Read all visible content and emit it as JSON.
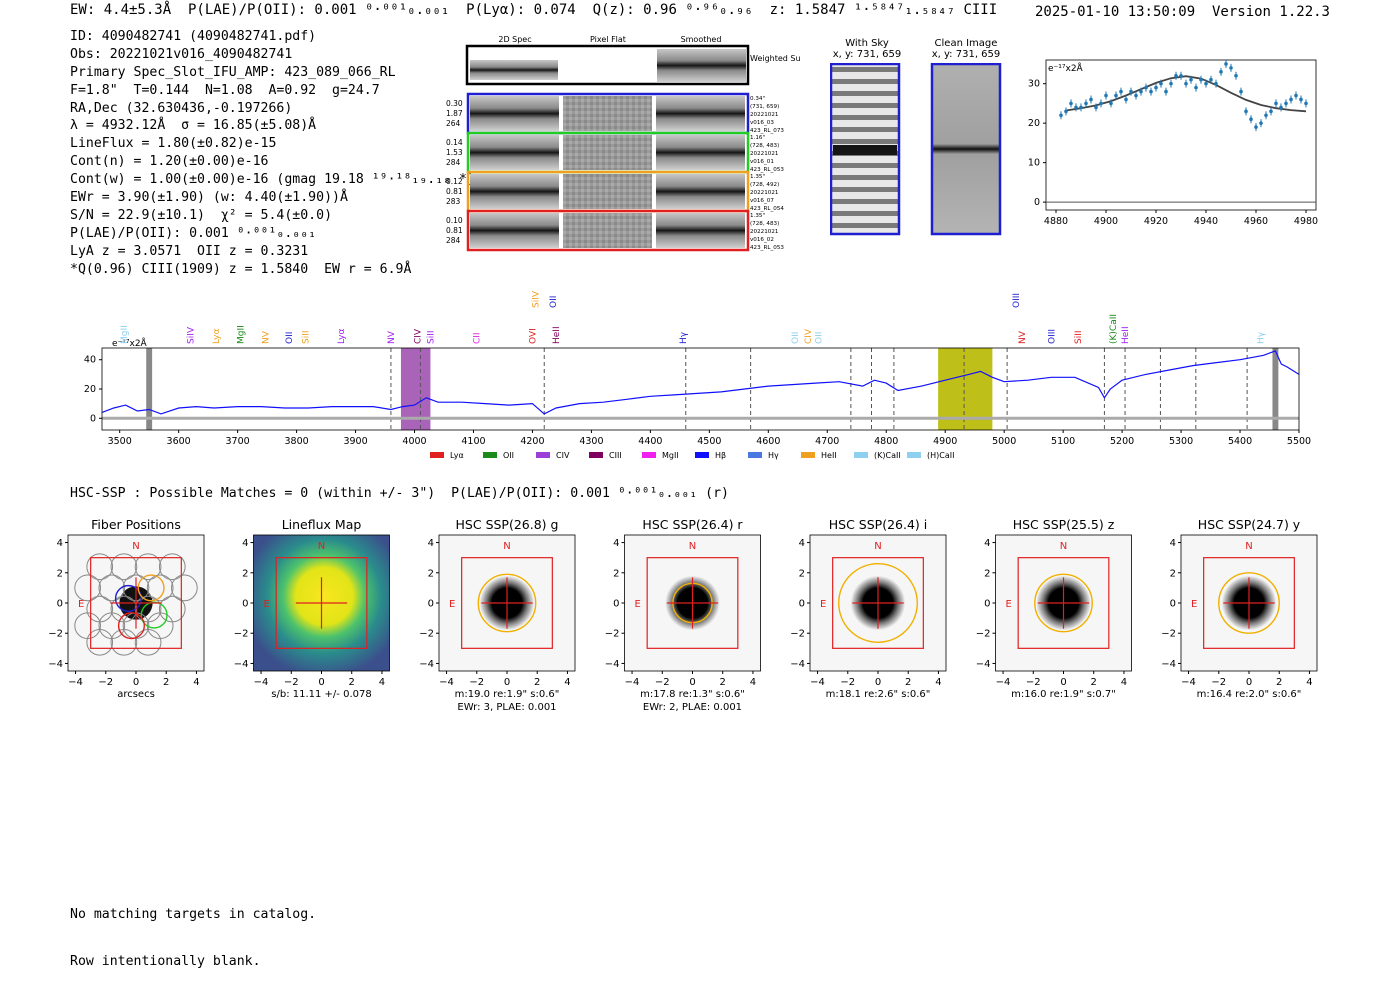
{
  "header": {
    "line": "EW: 4.4±5.3Å  P(LAE)/P(OII): 0.001 ⁰·⁰⁰¹₀.₀₀₁  P(Lyα): 0.074  Q(z): 0.96 ⁰·⁹⁶₀.₉₆  z: 1.5847 ¹·⁵⁸⁴⁷₁.₅₈₄₇ CIII",
    "datestamp": "2025-01-10 13:50:09  Version 1.22.3"
  },
  "info_lines": [
    "ID: 4090482741 (4090482741.pdf)",
    "Obs: 20221021v016_4090482741",
    "Primary Spec_Slot_IFU_AMP: 423_089_066_RL",
    "F=1.8\"  T=0.144  N=1.08  A=0.92  g=24.7",
    "RA,Dec (32.630436,-0.197266)",
    "λ = 4932.12Å  σ = 16.85(±5.08)Å",
    "LineFlux = 1.80(±0.82)e-15",
    "Cont(n) = 1.20(±0.00)e-16",
    "Cont(w) = 1.00(±0.00)e-16 (gmag 19.18 ¹⁹·¹⁸₁₉.₁₈ *)",
    "EWr = 3.90(±1.90) (w: 4.40(±1.90))Å",
    "S/N = 22.9(±10.1)  χ² = 5.4(±0.0)",
    "P(LAE)/P(OII): 0.001 ⁰·⁰⁰¹₀.₀₀₁",
    "LyA z = 3.0571  OII z = 0.3231",
    "*Q(0.96) CIII(1909) z = 1.5840  EW r = 6.9Å"
  ],
  "cutouts": {
    "col_labels": [
      "2D Spec",
      "Pixel Flat",
      "Smoothed"
    ],
    "weighted_label": "Weighted Sum",
    "rows": [
      {
        "left": [
          "0.30",
          "1.87",
          "264"
        ],
        "right": [
          "0.34\"",
          "(731, 659)",
          "20221021",
          "v016_03",
          "423_RL_073"
        ],
        "color": "#1f1fd0"
      },
      {
        "left": [
          "0.14",
          "1.53",
          "284"
        ],
        "right": [
          "1.16\"",
          "(728, 483)",
          "20221021",
          "v016_01",
          "423_RL_053"
        ],
        "color": "#22cc22"
      },
      {
        "left": [
          "0.12",
          "0.81",
          "283"
        ],
        "right": [
          "1.35\"",
          "(728, 492)",
          "20221021",
          "v016_07",
          "423_RL_054"
        ],
        "color": "#f0a020"
      },
      {
        "left": [
          "0.10",
          "0.81",
          "284"
        ],
        "right": [
          "1.35\"",
          "(728, 483)",
          "20221021",
          "v016_02",
          "423_RL_053"
        ],
        "color": "#e02020"
      }
    ]
  },
  "sky_panels": {
    "with_sky": {
      "title": "With Sky",
      "coords": "x, y: 731, 659"
    },
    "clean": {
      "title": "Clean Image",
      "coords": "x, y: 731, 659"
    }
  },
  "chart_data": [
    {
      "type": "scatter",
      "title": "",
      "ylabel_note": "e⁻¹⁷x2Å",
      "xlim": [
        4876,
        4984
      ],
      "ylim": [
        -2,
        36
      ],
      "xticks": [
        4880,
        4900,
        4920,
        4940,
        4960,
        4980
      ],
      "yticks": [
        0,
        10,
        20,
        30
      ],
      "points_x": [
        4882,
        4884,
        4886,
        4888,
        4890,
        4892,
        4894,
        4896,
        4898,
        4900,
        4902,
        4904,
        4906,
        4908,
        4910,
        4912,
        4914,
        4916,
        4918,
        4920,
        4922,
        4924,
        4926,
        4928,
        4930,
        4932,
        4934,
        4936,
        4938,
        4940,
        4942,
        4944,
        4946,
        4948,
        4950,
        4952,
        4954,
        4956,
        4958,
        4960,
        4962,
        4964,
        4966,
        4968,
        4970,
        4972,
        4974,
        4976,
        4978,
        4980
      ],
      "points_y": [
        22,
        23,
        25,
        24,
        24,
        25,
        26,
        24,
        25,
        27,
        25,
        27,
        28,
        26,
        28,
        27,
        28,
        29,
        28,
        29,
        30,
        28,
        30,
        32,
        32,
        30,
        31,
        29,
        31,
        30,
        31,
        30,
        33,
        35,
        34,
        32,
        28,
        23,
        21,
        19,
        20,
        22,
        23,
        25,
        24,
        25,
        26,
        27,
        26,
        25
      ],
      "fit_x": [
        4884,
        4890,
        4896,
        4902,
        4908,
        4914,
        4920,
        4926,
        4932,
        4938,
        4944,
        4950,
        4956,
        4962,
        4968,
        4974,
        4980
      ],
      "fit_y": [
        23.2,
        23.8,
        24.5,
        25.6,
        27.0,
        28.6,
        30.2,
        31.4,
        31.9,
        31.3,
        29.7,
        27.7,
        25.9,
        24.6,
        23.8,
        23.3,
        23.0
      ]
    },
    {
      "type": "line",
      "ylabel_note": "e⁻¹⁷x2Å",
      "xlim": [
        3470,
        5500
      ],
      "ylim": [
        -8,
        48
      ],
      "xticks": [
        3500,
        3600,
        3700,
        3800,
        3900,
        4000,
        4100,
        4200,
        4300,
        4400,
        4500,
        4600,
        4700,
        4800,
        4900,
        5000,
        5100,
        5200,
        5300,
        5400,
        5500
      ],
      "yticks": [
        0,
        20,
        40
      ],
      "spectrum_x": [
        3470,
        3490,
        3510,
        3530,
        3550,
        3570,
        3600,
        3630,
        3660,
        3700,
        3740,
        3780,
        3820,
        3860,
        3900,
        3930,
        3960,
        3980,
        4000,
        4020,
        4040,
        4080,
        4120,
        4160,
        4200,
        4220,
        4240,
        4280,
        4320,
        4360,
        4400,
        4440,
        4480,
        4520,
        4560,
        4600,
        4640,
        4680,
        4720,
        4760,
        4780,
        4800,
        4820,
        4860,
        4900,
        4920,
        4940,
        4960,
        4980,
        5000,
        5040,
        5080,
        5120,
        5160,
        5170,
        5180,
        5200,
        5240,
        5280,
        5320,
        5360,
        5400,
        5440,
        5460,
        5470,
        5480,
        5500
      ],
      "spectrum_y": [
        4,
        7,
        9,
        5,
        6,
        3,
        7,
        8,
        7,
        8,
        8,
        7,
        7,
        8,
        8,
        8,
        6,
        8,
        9,
        14,
        11,
        11,
        10,
        9,
        10,
        3,
        7,
        10,
        11,
        13,
        15,
        16,
        17,
        18,
        20,
        22,
        23,
        24,
        25,
        22,
        26,
        24,
        19,
        22,
        26,
        28,
        30,
        32,
        28,
        25,
        26,
        28,
        28,
        21,
        14,
        20,
        26,
        30,
        33,
        36,
        38,
        40,
        43,
        46,
        37,
        35,
        30
      ],
      "sky_bands": [
        [
          3545,
          3555
        ],
        [
          5455,
          5465
        ]
      ],
      "highlight_bands": [
        {
          "range": [
            3977,
            4027
          ],
          "color": "#a052b0"
        },
        {
          "range": [
            4888,
            4980
          ],
          "color": "#b8b800"
        }
      ],
      "line_markers": [
        {
          "x": 3512,
          "label": "MgII",
          "color": "#8fd0f0",
          "tier": 0
        },
        {
          "x": 3625,
          "label": "SiIV",
          "color": "#a020f0",
          "tier": 0
        },
        {
          "x": 3668,
          "label": "Lyα",
          "color": "#f0a020",
          "tier": 0
        },
        {
          "x": 3710,
          "label": "MgII",
          "color": "#1a8a1a",
          "tier": 0
        },
        {
          "x": 3752,
          "label": "NV",
          "color": "#f0a020",
          "tier": 0
        },
        {
          "x": 3792,
          "label": "OII",
          "color": "#1f1fd0",
          "tier": 0
        },
        {
          "x": 3820,
          "label": "SiII",
          "color": "#f0a020",
          "tier": 0
        },
        {
          "x": 3880,
          "label": "Lyα",
          "color": "#a020f0",
          "tier": 0
        },
        {
          "x": 3965,
          "label": "NV",
          "color": "#a020f0",
          "tier": 0
        },
        {
          "x": 4010,
          "label": "CIV",
          "color": "#800060",
          "tier": 0
        },
        {
          "x": 4032,
          "label": "SiII",
          "color": "#a020f0",
          "tier": 0
        },
        {
          "x": 4110,
          "label": "CII",
          "color": "#e020e0",
          "tier": 0
        },
        {
          "x": 4205,
          "label": "OVI",
          "color": "#e02020",
          "tier": 0
        },
        {
          "x": 4245,
          "label": "HeII",
          "color": "#800060",
          "tier": 0
        },
        {
          "x": 4210,
          "label": "SiIV",
          "color": "#f0a020",
          "tier": 1
        },
        {
          "x": 4240,
          "label": "OII",
          "color": "#1f1fd0",
          "tier": 1
        },
        {
          "x": 4460,
          "label": "Hγ",
          "color": "#1f1fd0",
          "tier": 0
        },
        {
          "x": 4650,
          "label": "OII",
          "color": "#8fd0f0",
          "tier": 0
        },
        {
          "x": 4672,
          "label": "CIV",
          "color": "#f0a020",
          "tier": 0
        },
        {
          "x": 4690,
          "label": "OII",
          "color": "#8fd0f0",
          "tier": 0
        },
        {
          "x": 5025,
          "label": "OIII",
          "color": "#1f1fd0",
          "tier": 1
        },
        {
          "x": 5035,
          "label": "NV",
          "color": "#e02020",
          "tier": 0
        },
        {
          "x": 5085,
          "label": "OIII",
          "color": "#1f1fd0",
          "tier": 0
        },
        {
          "x": 5130,
          "label": "SiII",
          "color": "#e02020",
          "tier": 0
        },
        {
          "x": 5190,
          "label": "(K)CaII",
          "color": "#1a8a1a",
          "tier": 0
        },
        {
          "x": 5210,
          "label": "HeII",
          "color": "#a020f0",
          "tier": 0
        },
        {
          "x": 5440,
          "label": "Hγ",
          "color": "#8fd0f0",
          "tier": 0
        }
      ],
      "dashed_lines": [
        3960,
        4010,
        4220,
        4460,
        4570,
        4740,
        4775,
        4813,
        4932,
        5005,
        5170,
        5205,
        5265,
        5325,
        5412
      ],
      "legend": [
        {
          "label": "Lyα",
          "color": "#e02020"
        },
        {
          "label": "OII",
          "color": "#1a8a1a"
        },
        {
          "label": "CIV",
          "color": "#9a40d8"
        },
        {
          "label": "CIII",
          "color": "#800060"
        },
        {
          "label": "MgII",
          "color": "#f020f0"
        },
        {
          "label": "Hβ",
          "color": "#1010ff"
        },
        {
          "label": "Hγ",
          "color": "#4a78e0"
        },
        {
          "label": "HeII",
          "color": "#f0a020"
        },
        {
          "label": "(K)CaII",
          "color": "#8fd0f0"
        },
        {
          "label": "(H)CaII",
          "color": "#8fd0f0"
        }
      ]
    }
  ],
  "hsc": {
    "title": "HSC-SSP : Possible Matches = 0 (within +/- 3\")  P(LAE)/P(OII): 0.001 ⁰·⁰⁰¹₀.₀₀₁ (r)",
    "axis_ticks": [
      "4",
      "2",
      "0",
      "−2",
      "−4"
    ],
    "x_ticks": [
      "−4",
      "−2",
      "0",
      "2",
      "4"
    ],
    "north": "N",
    "east": "E",
    "panels": [
      {
        "title": "Fiber Positions",
        "caption1": "arcsecs",
        "caption2": "",
        "kind": "fiber"
      },
      {
        "title": "Lineflux Map",
        "caption1": "s/b: 11.11 +/- 0.078",
        "caption2": "",
        "kind": "lineflux"
      },
      {
        "title": "HSC SSP(26.8) g",
        "caption1": "m:19.0  re:1.9\"  s:0.6\"",
        "caption2": "EWr: 3, PLAE: 0.001",
        "kind": "hsc",
        "ellipse": 1.9
      },
      {
        "title": "HSC SSP(26.4) r",
        "caption1": "m:17.8  re:1.3\"  s:0.6\"",
        "caption2": "EWr: 2, PLAE: 0.001",
        "kind": "hsc",
        "ellipse": 1.3
      },
      {
        "title": "HSC SSP(26.4) i",
        "caption1": "m:18.1  re:2.6\"  s:0.6\"",
        "caption2": "",
        "kind": "hsc",
        "ellipse": 2.6
      },
      {
        "title": "HSC SSP(25.5) z",
        "caption1": "m:16.0  re:1.9\"  s:0.7\"",
        "caption2": "",
        "kind": "hsc",
        "ellipse": 1.9
      },
      {
        "title": "HSC SSP(24.7) y",
        "caption1": "m:16.4  re:2.0\"  s:0.6\"",
        "caption2": "",
        "kind": "hsc",
        "ellipse": 2.0
      }
    ]
  },
  "footer": {
    "line1": "No matching targets in catalog.",
    "line2": "Row intentionally blank."
  }
}
